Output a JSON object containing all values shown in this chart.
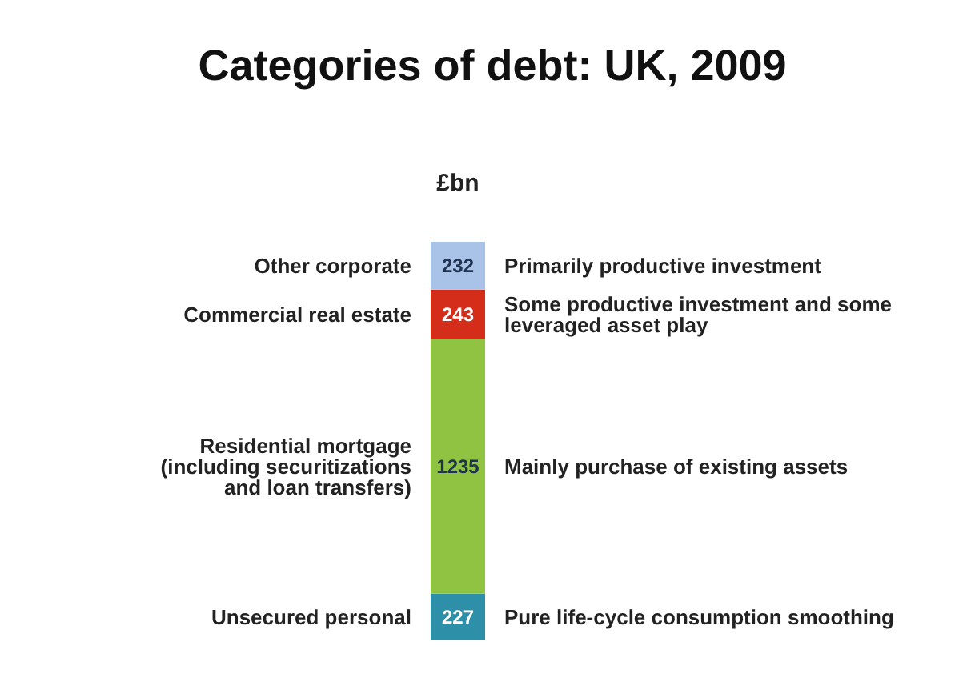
{
  "chart_data": {
    "type": "bar",
    "title": "Categories of debt: UK, 2009",
    "ylabel": "£bn",
    "stacked": true,
    "categories": [
      null
    ],
    "data_labels": true,
    "tick_labels": false,
    "legend": false,
    "series": [
      {
        "name": "Unsecured personal",
        "color": "#2e8fa8",
        "values": [
          227
        ]
      },
      {
        "name": "Residential mortgage (including securitizations and loan transfers)",
        "color": "#8fc341",
        "values": [
          1235
        ]
      },
      {
        "name": "Commercial real estate",
        "color": "#d42d1a",
        "values": [
          243
        ]
      },
      {
        "name": "Other corporate",
        "color": "#a9c3e8",
        "values": [
          232
        ]
      }
    ],
    "annotations": [
      "Pure life-cycle consumption smoothing",
      "Mainly purchase of existing assets",
      "Some productive investment and some leveraged asset play",
      "Primarily productive investment"
    ]
  }
}
